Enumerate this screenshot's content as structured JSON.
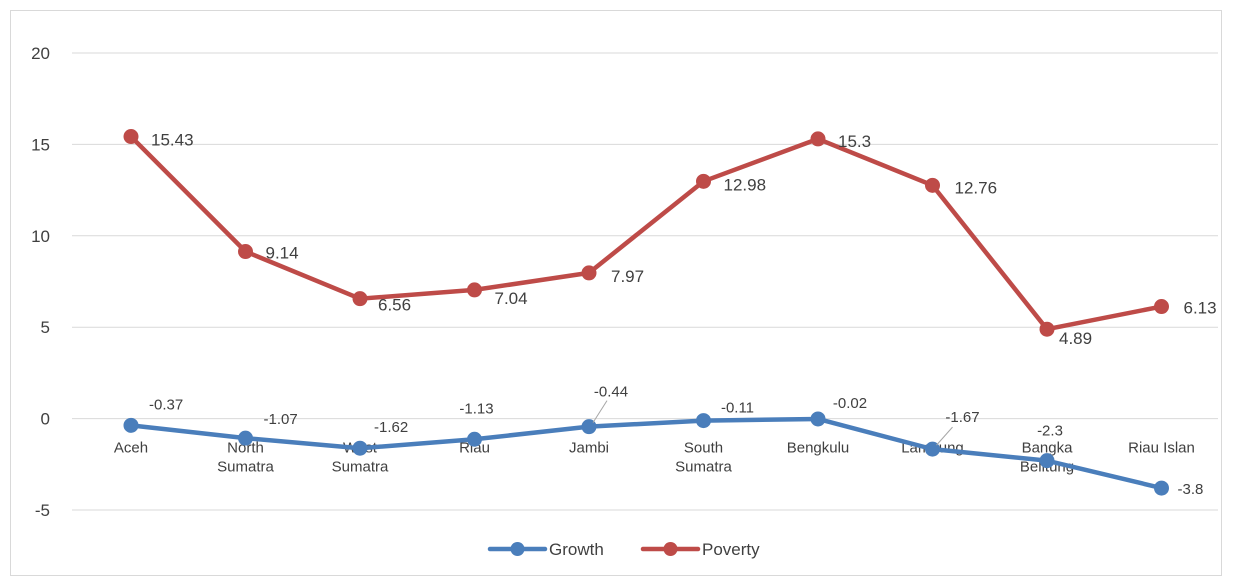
{
  "chart_data": {
    "type": "line",
    "categories": [
      [
        "Aceh"
      ],
      [
        "North",
        "Sumatra"
      ],
      [
        "West",
        "Sumatra"
      ],
      [
        "Riau"
      ],
      [
        "Jambi"
      ],
      [
        "South",
        "Sumatra"
      ],
      [
        "Bengkulu"
      ],
      [
        "Lampung"
      ],
      [
        "Bangka",
        "Belitung"
      ],
      [
        "Riau Islan"
      ]
    ],
    "series": [
      {
        "name": "Growth",
        "color": "#4a7ebb",
        "values": [
          -0.37,
          -1.07,
          -1.62,
          -1.13,
          -0.44,
          -0.11,
          -0.02,
          -1.67,
          -2.3,
          -3.8
        ],
        "labels": [
          "-0.37",
          "-1.07",
          "-1.62",
          "-1.13",
          "-0.44",
          "-0.11",
          "-0.02",
          "-1.67",
          "-2.3",
          "-3.8"
        ]
      },
      {
        "name": "Poverty",
        "color": "#be4b48",
        "values": [
          15.43,
          9.14,
          6.56,
          7.04,
          7.97,
          12.98,
          15.3,
          12.76,
          4.89,
          6.13
        ],
        "labels": [
          "15.43",
          "9.14",
          "6.56",
          "7.04",
          "7.97",
          "12.98",
          "15.3",
          "12.76",
          "4.89",
          "6.13"
        ]
      }
    ],
    "ylim": [
      -5,
      20
    ],
    "yticks": [
      "20",
      "15",
      "10",
      "5",
      "0",
      "-5"
    ],
    "ytick_values": [
      20,
      15,
      10,
      5,
      0,
      -5
    ],
    "grid": true,
    "legend": "bottom"
  }
}
